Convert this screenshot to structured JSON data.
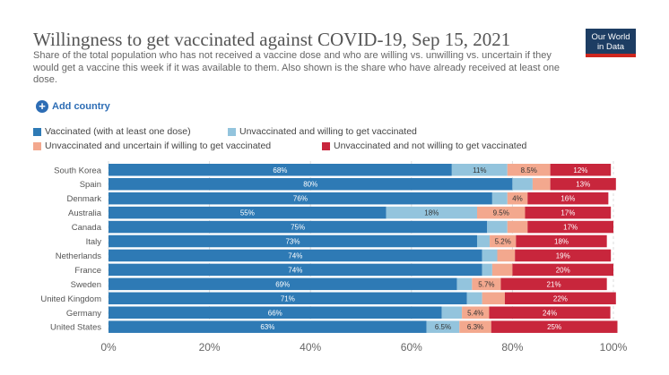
{
  "header": {
    "title": "Willingness to get vaccinated against COVID-19, Sep 15, 2021",
    "subtitle": "Share of the total population who has not received a vaccine dose and who are willing vs. unwilling vs. uncertain if they would get a vaccine this week if it was available to them. Also shown is the share who have already received at least one dose.",
    "logo_line1": "Our World",
    "logo_line2": "in Data"
  },
  "controls": {
    "add_country": "Add country"
  },
  "colors": {
    "vaccinated": "#2e7ab5",
    "willing": "#93c4dd",
    "uncertain": "#f3a88e",
    "unwilling": "#c8263c"
  },
  "chart_data": {
    "type": "bar",
    "orientation": "horizontal",
    "stacked": true,
    "title": "Willingness to get vaccinated against COVID-19, Sep 15, 2021",
    "xlim": [
      0,
      100
    ],
    "x_ticks": [
      "0%",
      "20%",
      "40%",
      "60%",
      "80%",
      "100%"
    ],
    "x_tick_values": [
      0,
      20,
      40,
      60,
      80,
      100
    ],
    "grid": true,
    "categories": [
      "South Korea",
      "Spain",
      "Denmark",
      "Australia",
      "Canada",
      "Italy",
      "Netherlands",
      "France",
      "Sweden",
      "United Kingdom",
      "Germany",
      "United States"
    ],
    "series": [
      {
        "name": "Vaccinated (with at least one dose)",
        "key": "vaccinated",
        "values": [
          68,
          80,
          76,
          55,
          75,
          73,
          74,
          74,
          69,
          71,
          66,
          63
        ],
        "labels": [
          "68%",
          "80%",
          "76%",
          "55%",
          "75%",
          "73%",
          "74%",
          "74%",
          "69%",
          "71%",
          "66%",
          "63%"
        ]
      },
      {
        "name": "Unvaccinated and willing to get vaccinated",
        "key": "willing",
        "values": [
          11,
          4,
          3,
          18,
          4,
          2.5,
          3,
          2,
          3,
          3,
          4,
          6.5
        ],
        "labels": [
          "11%",
          "",
          "",
          "18%",
          "",
          "",
          "",
          "",
          "",
          "",
          "",
          "6.5%"
        ]
      },
      {
        "name": "Unvaccinated and uncertain if willing to get vaccinated",
        "key": "uncertain",
        "values": [
          8.5,
          3.5,
          4,
          9.5,
          4,
          5.2,
          3.5,
          4,
          5.7,
          4.5,
          5.4,
          6.3
        ],
        "labels": [
          "8.5%",
          "",
          "4%",
          "9.5%",
          "",
          "5.2%",
          "",
          "",
          "5.7%",
          "",
          "5.4%",
          "6.3%"
        ]
      },
      {
        "name": "Unvaccinated and not willing to get vaccinated",
        "key": "unwilling",
        "values": [
          12,
          13,
          16,
          17,
          17,
          18,
          19,
          20,
          21,
          22,
          24,
          25
        ],
        "labels": [
          "12%",
          "13%",
          "16%",
          "17%",
          "17%",
          "18%",
          "19%",
          "20%",
          "21%",
          "22%",
          "24%",
          "25%"
        ]
      }
    ]
  }
}
